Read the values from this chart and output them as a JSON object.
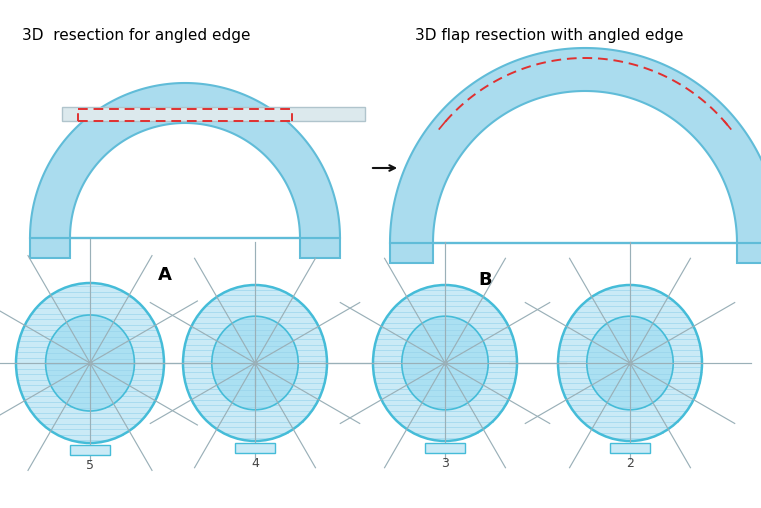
{
  "bg_color": "#ffffff",
  "title_A": "3D  resection for angled edge",
  "title_B": "3D flap resection with angled edge",
  "label_A": "A",
  "label_B": "B",
  "arch_fill_color": "#aadcee",
  "arch_edge_color": "#60bcd8",
  "rect_fill_color": "#dce9ed",
  "rect_edge_color": "#b0c4cc",
  "dashed_color": "#e03030",
  "circle_edge_color": "#45bcd8",
  "circle_fill_light": "#caeaf6",
  "circle_fill_mid": "#abe0f2",
  "hatch_color": "#99d4ec",
  "spoke_color": "#9ab0b8",
  "numbers": [
    "5",
    "4",
    "3",
    "2"
  ],
  "arrow_color": "#111111"
}
